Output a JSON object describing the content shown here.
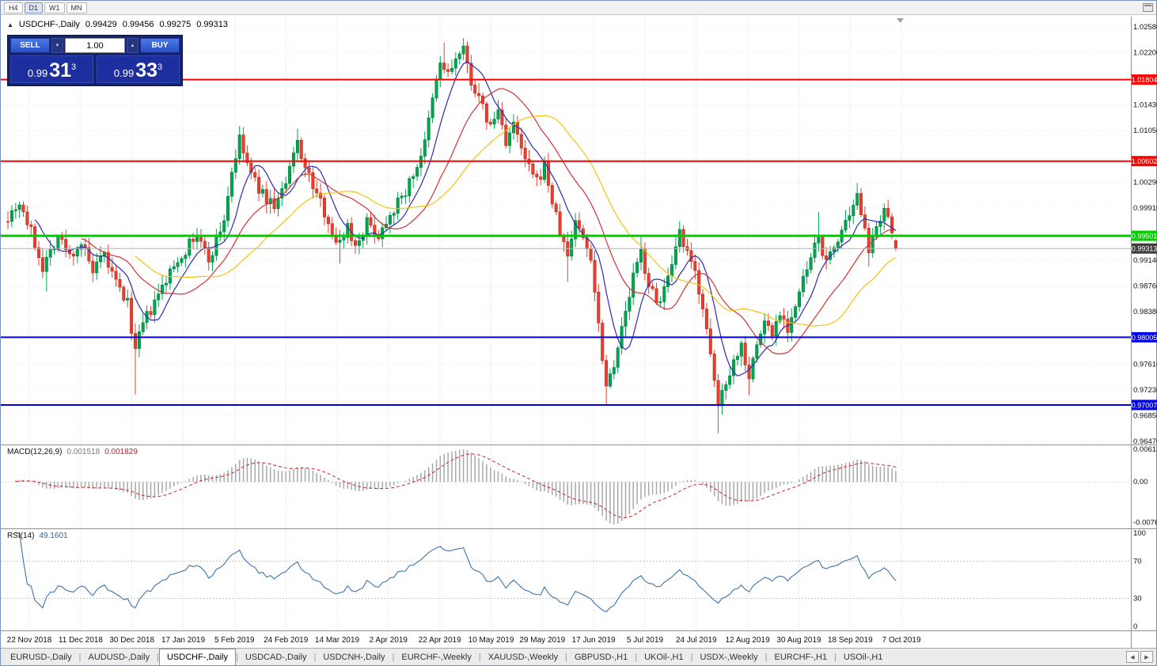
{
  "toolbar": {
    "timeframes": [
      {
        "label": "H4",
        "active": false
      },
      {
        "label": "D1",
        "active": true
      },
      {
        "label": "W1",
        "active": false
      },
      {
        "label": "MN",
        "active": false
      }
    ]
  },
  "chart_header": {
    "arrow": "▲",
    "symbol": "USDCHF-,Daily",
    "open": "0.99429",
    "high": "0.99456",
    "low": "0.99275",
    "close": "0.99313"
  },
  "trade_panel": {
    "sell_label": "SELL",
    "buy_label": "BUY",
    "volume": "1.00",
    "volume_down_icon": "▼",
    "volume_up_icon": "▲",
    "bid": {
      "small": "0.99",
      "big": "31",
      "sup": "3"
    },
    "ask": {
      "small": "0.99",
      "big": "33",
      "sup": "3"
    }
  },
  "price_axis": {
    "ticks": [
      "1.02580",
      "1.02200",
      "1.01430",
      "1.01050",
      "1.00290",
      "0.99910",
      "0.99140",
      "0.98760",
      "0.98380",
      "0.97610",
      "0.97230",
      "0.96850",
      "0.96470"
    ],
    "current_price": "0.99313",
    "current_badge_color": "#3e3e3e"
  },
  "levels": [
    {
      "price": 1.01804,
      "label": "1.01804",
      "color": "#ff0000",
      "width": 2
    },
    {
      "price": 1.00602,
      "label": "1.00602",
      "color": "#ff0000",
      "width": 2
    },
    {
      "price": 0.99501,
      "label": "0.99501",
      "color": "#00cc00",
      "width": 3
    },
    {
      "price": 0.98005,
      "label": "0.98005",
      "color": "#0000e6",
      "width": 2
    },
    {
      "price": 0.97007,
      "label": "0.97007",
      "color": "#0000e6",
      "width": 2
    }
  ],
  "date_axis": [
    "22 Nov 2018",
    "11 Dec 2018",
    "30 Dec 2018",
    "17 Jan 2019",
    "5 Feb 2019",
    "24 Feb 2019",
    "14 Mar 2019",
    "2 Apr 2019",
    "22 Apr 2019",
    "10 May 2019",
    "29 May 2019",
    "17 Jun 2019",
    "5 Jul 2019",
    "24 Jul 2019",
    "12 Aug 2019",
    "30 Aug 2019",
    "18 Sep 2019",
    "7 Oct 2019"
  ],
  "macd": {
    "label": "MACD(12,26,9)",
    "value1": "0.001518",
    "value2": "0.001829",
    "axis": [
      "0.00613",
      "0.00",
      "-0.00761"
    ],
    "axis_values": [
      0.00613,
      0,
      -0.00761
    ],
    "params": {
      "fast": 12,
      "slow": 26,
      "signal": 9
    }
  },
  "rsi": {
    "label": "RSI(14)",
    "value": "49.1601",
    "axis": [
      "100",
      "70",
      "30",
      "0"
    ],
    "axis_values": [
      100,
      70,
      30,
      0
    ],
    "levels": [
      70,
      30
    ],
    "period": 14
  },
  "tabs": {
    "separator": "|",
    "scroll_left_icon": "◀",
    "scroll_right_icon": "▶",
    "active_index": 2,
    "items": [
      "EURUSD-,Daily",
      "AUDUSD-,Daily",
      "USDCHF-,Daily",
      "USDCAD-,Daily",
      "USDCNH-,Daily",
      "EURCHF-,Weekly",
      "XAUUSD-,Weekly",
      "GBPUSD-,H1",
      "UKOil-,H1",
      "USDX-,Weekly",
      "EURCHF-,H1",
      "USOil-,H1"
    ]
  },
  "chart_data": {
    "type": "candlestick",
    "symbol": "USDCHF",
    "timeframe": "Daily",
    "title": "USDCHF-,Daily",
    "ohlc_current": {
      "open": 0.99429,
      "high": 0.99456,
      "low": 0.99275,
      "close": 0.99313
    },
    "y_range": [
      0.96423,
      1.02755
    ],
    "x_range_dates": [
      "22 Nov 2018",
      "14 Oct 2019"
    ],
    "candle_count": 231,
    "last_close": 0.99313,
    "close_waypoints": [
      [
        0,
        0.998
      ],
      [
        3,
        1.0
      ],
      [
        6,
        0.9955
      ],
      [
        9,
        0.9905
      ],
      [
        13,
        0.995
      ],
      [
        16,
        0.992
      ],
      [
        19,
        0.994
      ],
      [
        22,
        0.9895
      ],
      [
        25,
        0.992
      ],
      [
        28,
        0.988
      ],
      [
        31,
        0.985
      ],
      [
        33,
        0.978
      ],
      [
        35,
        0.982
      ],
      [
        38,
        0.985
      ],
      [
        41,
        0.9885
      ],
      [
        44,
        0.9915
      ],
      [
        46,
        0.993
      ],
      [
        49,
        0.995
      ],
      [
        52,
        0.9915
      ],
      [
        54,
        0.9942
      ],
      [
        56,
        0.9975
      ],
      [
        58,
        1.0045
      ],
      [
        60,
        1.009
      ],
      [
        63,
        1.004
      ],
      [
        66,
        1.001
      ],
      [
        69,
        0.9995
      ],
      [
        72,
        1.0025
      ],
      [
        75,
        1.009
      ],
      [
        77,
        1.005
      ],
      [
        80,
        1.001
      ],
      [
        83,
        0.9975
      ],
      [
        85,
        0.9935
      ],
      [
        88,
        0.9965
      ],
      [
        90,
        0.9935
      ],
      [
        93,
        0.997
      ],
      [
        96,
        0.995
      ],
      [
        99,
        0.9985
      ],
      [
        102,
        1.0005
      ],
      [
        105,
        1.004
      ],
      [
        108,
        1.0085
      ],
      [
        110,
        1.015
      ],
      [
        112,
        1.0205
      ],
      [
        114,
        1.0188
      ],
      [
        116,
        1.021
      ],
      [
        118,
        1.0222
      ],
      [
        120,
        1.018
      ],
      [
        122,
        1.015
      ],
      [
        125,
        1.011
      ],
      [
        127,
        1.0135
      ],
      [
        129,
        1.009
      ],
      [
        131,
        1.0112
      ],
      [
        134,
        1.006
      ],
      [
        137,
        1.0028
      ],
      [
        139,
        1.0055
      ],
      [
        141,
        1.0
      ],
      [
        143,
        0.9955
      ],
      [
        145,
        0.992
      ],
      [
        147,
        0.9975
      ],
      [
        149,
        0.9945
      ],
      [
        151,
        0.992
      ],
      [
        153,
        0.982
      ],
      [
        155,
        0.973
      ],
      [
        157,
        0.9765
      ],
      [
        160,
        0.9835
      ],
      [
        162,
        0.989
      ],
      [
        164,
        0.9925
      ],
      [
        166,
        0.988
      ],
      [
        168,
        0.985
      ],
      [
        170,
        0.9872
      ],
      [
        172,
        0.99
      ],
      [
        174,
        0.9952
      ],
      [
        176,
        0.992
      ],
      [
        178,
        0.9895
      ],
      [
        180,
        0.9848
      ],
      [
        182,
        0.9768
      ],
      [
        184,
        0.97
      ],
      [
        186,
        0.9738
      ],
      [
        188,
        0.9765
      ],
      [
        190,
        0.979
      ],
      [
        192,
        0.9745
      ],
      [
        194,
        0.9788
      ],
      [
        196,
        0.9825
      ],
      [
        198,
        0.9805
      ],
      [
        200,
        0.984
      ],
      [
        202,
        0.9815
      ],
      [
        205,
        0.9862
      ],
      [
        206,
        0.9885
      ],
      [
        208,
        0.9915
      ],
      [
        210,
        0.9948
      ],
      [
        212,
        0.9908
      ],
      [
        214,
        0.9935
      ],
      [
        216,
        0.9958
      ],
      [
        218,
        0.9972
      ],
      [
        220,
        1.0005
      ],
      [
        222,
        0.997
      ],
      [
        223,
        0.993
      ],
      [
        225,
        0.9955
      ],
      [
        227,
        0.9985
      ],
      [
        229,
        0.9955
      ],
      [
        230,
        0.9931
      ]
    ],
    "extremes": [
      {
        "i": 10,
        "l": 0.9868
      },
      {
        "i": 33,
        "l": 0.9716
      },
      {
        "i": 49,
        "h": 0.9962
      },
      {
        "i": 60,
        "h": 1.0098
      },
      {
        "i": 75,
        "h": 1.0108
      },
      {
        "i": 86,
        "l": 0.9909
      },
      {
        "i": 113,
        "h": 1.0235
      },
      {
        "i": 118,
        "h": 1.0237
      },
      {
        "i": 145,
        "l": 0.9882
      },
      {
        "i": 155,
        "l": 0.97
      },
      {
        "i": 164,
        "h": 0.9948
      },
      {
        "i": 174,
        "h": 0.9966
      },
      {
        "i": 184,
        "l": 0.9659
      },
      {
        "i": 192,
        "l": 0.9715
      },
      {
        "i": 210,
        "h": 0.9985
      },
      {
        "i": 220,
        "h": 1.0028
      },
      {
        "i": 223,
        "l": 0.9905
      },
      {
        "i": 227,
        "h": 0.9998
      }
    ],
    "candle_colors": {
      "up": "#00a550",
      "down": "#e8402f"
    },
    "moving_averages": [
      {
        "period": 8,
        "color": "#2b2bb5"
      },
      {
        "period": 20,
        "color": "#d23333"
      },
      {
        "period": 34,
        "color": "#f2c40f"
      }
    ]
  }
}
